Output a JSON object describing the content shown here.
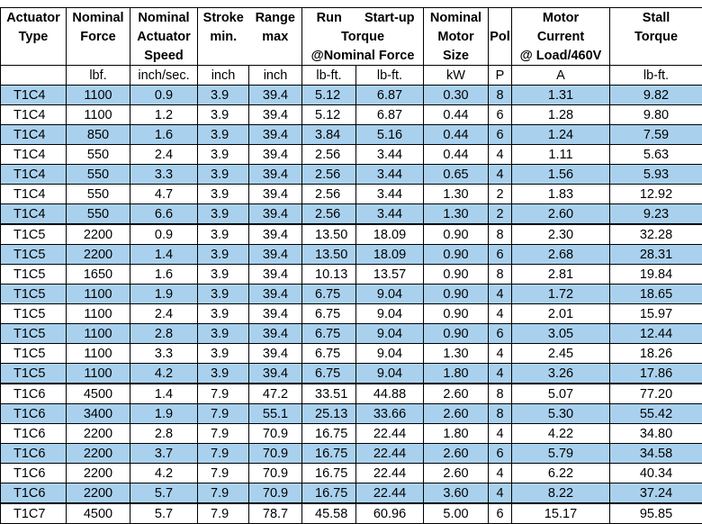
{
  "clipped_title": "",
  "header": {
    "row1": [
      "Actuator",
      "Nominal",
      "Nominal",
      "Stroke",
      "Range",
      "Run",
      "Start-up",
      "Nominal",
      "",
      "Motor",
      "Stall"
    ],
    "row2": [
      "Type",
      "Force",
      "Actuator",
      "min.",
      "max",
      "Torque",
      "Motor",
      "Pol",
      "Current",
      "Torque"
    ],
    "row3": [
      "Speed",
      "@Nominal Force",
      "Size",
      "@ Load/460V"
    ]
  },
  "units": [
    "",
    "lbf.",
    "inch/sec.",
    "inch",
    "inch",
    "lb-ft.",
    "lb-ft.",
    "kW",
    "P",
    "A",
    "lb-ft."
  ],
  "rows": [
    [
      "T1C4",
      "1100",
      "0.9",
      "3.9",
      "39.4",
      "5.12",
      "6.87",
      "0.30",
      "8",
      "1.31",
      "9.82"
    ],
    [
      "T1C4",
      "1100",
      "1.2",
      "3.9",
      "39.4",
      "5.12",
      "6.87",
      "0.44",
      "6",
      "1.28",
      "9.80"
    ],
    [
      "T1C4",
      "850",
      "1.6",
      "3.9",
      "39.4",
      "3.84",
      "5.16",
      "0.44",
      "6",
      "1.24",
      "7.59"
    ],
    [
      "T1C4",
      "550",
      "2.4",
      "3.9",
      "39.4",
      "2.56",
      "3.44",
      "0.44",
      "4",
      "1.11",
      "5.63"
    ],
    [
      "T1C4",
      "550",
      "3.3",
      "3.9",
      "39.4",
      "2.56",
      "3.44",
      "0.65",
      "4",
      "1.56",
      "5.93"
    ],
    [
      "T1C4",
      "550",
      "4.7",
      "3.9",
      "39.4",
      "2.56",
      "3.44",
      "1.30",
      "2",
      "1.83",
      "12.92"
    ],
    [
      "T1C4",
      "550",
      "6.6",
      "3.9",
      "39.4",
      "2.56",
      "3.44",
      "1.30",
      "2",
      "2.60",
      "9.23"
    ],
    [
      "T1C5",
      "2200",
      "0.9",
      "3.9",
      "39.4",
      "13.50",
      "18.09",
      "0.90",
      "8",
      "2.30",
      "32.28"
    ],
    [
      "T1C5",
      "2200",
      "1.4",
      "3.9",
      "39.4",
      "13.50",
      "18.09",
      "0.90",
      "6",
      "2.68",
      "28.31"
    ],
    [
      "T1C5",
      "1650",
      "1.6",
      "3.9",
      "39.4",
      "10.13",
      "13.57",
      "0.90",
      "8",
      "2.81",
      "19.84"
    ],
    [
      "T1C5",
      "1100",
      "1.9",
      "3.9",
      "39.4",
      "6.75",
      "9.04",
      "0.90",
      "4",
      "1.72",
      "18.65"
    ],
    [
      "T1C5",
      "1100",
      "2.4",
      "3.9",
      "39.4",
      "6.75",
      "9.04",
      "0.90",
      "4",
      "2.01",
      "15.97"
    ],
    [
      "T1C5",
      "1100",
      "2.8",
      "3.9",
      "39.4",
      "6.75",
      "9.04",
      "0.90",
      "6",
      "3.05",
      "12.44"
    ],
    [
      "T1C5",
      "1100",
      "3.3",
      "3.9",
      "39.4",
      "6.75",
      "9.04",
      "1.30",
      "4",
      "2.45",
      "18.26"
    ],
    [
      "T1C5",
      "1100",
      "4.2",
      "3.9",
      "39.4",
      "6.75",
      "9.04",
      "1.80",
      "4",
      "3.26",
      "17.86"
    ],
    [
      "T1C6",
      "4500",
      "1.4",
      "7.9",
      "47.2",
      "33.51",
      "44.88",
      "2.60",
      "8",
      "5.07",
      "77.20"
    ],
    [
      "T1C6",
      "3400",
      "1.9",
      "7.9",
      "55.1",
      "25.13",
      "33.66",
      "2.60",
      "8",
      "5.30",
      "55.42"
    ],
    [
      "T1C6",
      "2200",
      "2.8",
      "7.9",
      "70.9",
      "16.75",
      "22.44",
      "1.80",
      "4",
      "4.22",
      "34.80"
    ],
    [
      "T1C6",
      "2200",
      "3.7",
      "7.9",
      "70.9",
      "16.75",
      "22.44",
      "2.60",
      "6",
      "5.79",
      "34.58"
    ],
    [
      "T1C6",
      "2200",
      "4.2",
      "7.9",
      "70.9",
      "16.75",
      "22.44",
      "2.60",
      "4",
      "6.22",
      "40.34"
    ],
    [
      "T1C6",
      "2200",
      "5.7",
      "7.9",
      "70.9",
      "16.75",
      "22.44",
      "3.60",
      "4",
      "8.22",
      "37.24"
    ],
    [
      "T1C7",
      "4500",
      "5.7",
      "7.9",
      "78.7",
      "45.58",
      "60.96",
      "5.00",
      "6",
      "15.17",
      "95.85"
    ]
  ],
  "colors": {
    "alt_row": "#a9d1ee",
    "border": "#000000"
  }
}
